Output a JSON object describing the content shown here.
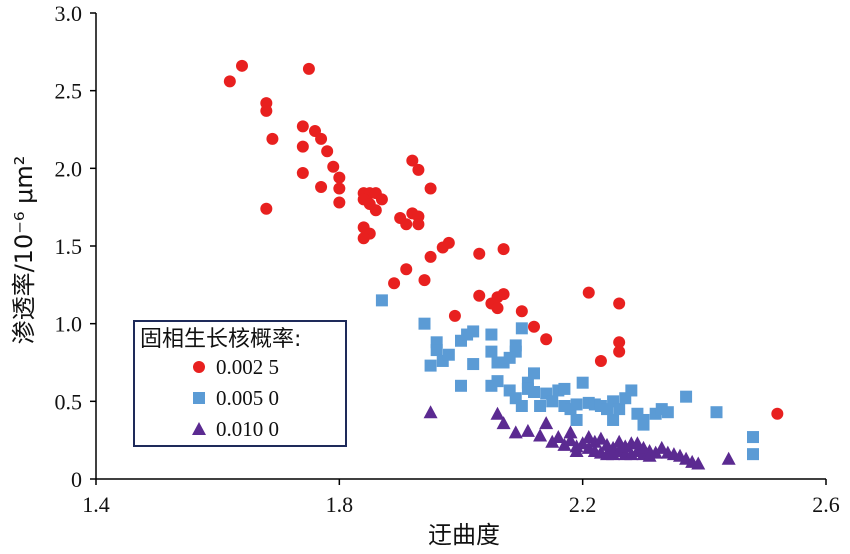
{
  "chart_data": {
    "type": "scatter",
    "xlabel": "迂曲度",
    "ylabel": "渗透率/10⁻⁶ μm²",
    "xlim": [
      1.4,
      2.6
    ],
    "ylim": [
      0,
      3.0
    ],
    "xticks": [
      "1.4",
      "1.8",
      "2.2",
      "2.6"
    ],
    "yticks": [
      "0",
      "0.5",
      "1.0",
      "1.5",
      "2.0",
      "2.5",
      "3.0"
    ],
    "grid": false,
    "legend": {
      "title": "固相生长核概率:",
      "placement": "bottom-left"
    },
    "series": [
      {
        "name": "0.002 5",
        "marker": "circle",
        "color": "#e8201f",
        "points": [
          [
            1.62,
            2.56
          ],
          [
            1.64,
            2.66
          ],
          [
            1.68,
            2.42
          ],
          [
            1.68,
            2.37
          ],
          [
            1.69,
            2.19
          ],
          [
            1.68,
            1.74
          ],
          [
            1.75,
            2.64
          ],
          [
            1.74,
            2.27
          ],
          [
            1.76,
            2.24
          ],
          [
            1.77,
            2.19
          ],
          [
            1.74,
            2.14
          ],
          [
            1.78,
            2.11
          ],
          [
            1.79,
            2.01
          ],
          [
            1.74,
            1.97
          ],
          [
            1.8,
            1.94
          ],
          [
            1.77,
            1.88
          ],
          [
            1.8,
            1.87
          ],
          [
            1.8,
            1.78
          ],
          [
            1.84,
            1.84
          ],
          [
            1.85,
            1.84
          ],
          [
            1.86,
            1.84
          ],
          [
            1.84,
            1.8
          ],
          [
            1.85,
            1.77
          ],
          [
            1.86,
            1.73
          ],
          [
            1.84,
            1.62
          ],
          [
            1.85,
            1.58
          ],
          [
            1.84,
            1.55
          ],
          [
            1.87,
            1.8
          ],
          [
            1.92,
            2.05
          ],
          [
            1.93,
            1.99
          ],
          [
            1.95,
            1.87
          ],
          [
            1.92,
            1.71
          ],
          [
            1.93,
            1.69
          ],
          [
            1.9,
            1.68
          ],
          [
            1.93,
            1.64
          ],
          [
            1.91,
            1.64
          ],
          [
            1.97,
            1.49
          ],
          [
            1.98,
            1.52
          ],
          [
            1.95,
            1.43
          ],
          [
            1.91,
            1.35
          ],
          [
            1.89,
            1.26
          ],
          [
            1.94,
            1.28
          ],
          [
            2.03,
            1.45
          ],
          [
            2.07,
            1.48
          ],
          [
            2.03,
            1.18
          ],
          [
            2.05,
            1.13
          ],
          [
            2.06,
            1.17
          ],
          [
            2.07,
            1.19
          ],
          [
            2.06,
            1.1
          ],
          [
            1.99,
            1.05
          ],
          [
            2.1,
            1.08
          ],
          [
            2.12,
            0.98
          ],
          [
            2.14,
            0.9
          ],
          [
            2.21,
            1.2
          ],
          [
            2.26,
            1.13
          ],
          [
            2.23,
            0.76
          ],
          [
            2.26,
            0.88
          ],
          [
            2.26,
            0.82
          ],
          [
            2.52,
            0.42
          ]
        ]
      },
      {
        "name": "0.005 0",
        "marker": "square",
        "color": "#5b9bd5",
        "points": [
          [
            1.87,
            1.15
          ],
          [
            1.94,
            1.0
          ],
          [
            1.96,
            0.88
          ],
          [
            1.96,
            0.83
          ],
          [
            1.95,
            0.73
          ],
          [
            1.97,
            0.76
          ],
          [
            1.98,
            0.8
          ],
          [
            2.0,
            0.89
          ],
          [
            2.01,
            0.93
          ],
          [
            2.02,
            0.95
          ],
          [
            2.0,
            0.6
          ],
          [
            2.02,
            0.74
          ],
          [
            2.05,
            0.93
          ],
          [
            2.05,
            0.82
          ],
          [
            2.06,
            0.75
          ],
          [
            2.07,
            0.75
          ],
          [
            2.09,
            0.86
          ],
          [
            2.09,
            0.82
          ],
          [
            2.1,
            0.97
          ],
          [
            2.08,
            0.78
          ],
          [
            2.06,
            0.63
          ],
          [
            2.05,
            0.6
          ],
          [
            2.08,
            0.57
          ],
          [
            2.09,
            0.52
          ],
          [
            2.1,
            0.47
          ],
          [
            2.11,
            0.62
          ],
          [
            2.11,
            0.58
          ],
          [
            2.12,
            0.56
          ],
          [
            2.12,
            0.68
          ],
          [
            2.13,
            0.47
          ],
          [
            2.14,
            0.55
          ],
          [
            2.15,
            0.5
          ],
          [
            2.16,
            0.57
          ],
          [
            2.17,
            0.58
          ],
          [
            2.17,
            0.47
          ],
          [
            2.18,
            0.45
          ],
          [
            2.19,
            0.48
          ],
          [
            2.19,
            0.38
          ],
          [
            2.2,
            0.62
          ],
          [
            2.21,
            0.49
          ],
          [
            2.22,
            0.48
          ],
          [
            2.23,
            0.47
          ],
          [
            2.24,
            0.45
          ],
          [
            2.25,
            0.5
          ],
          [
            2.25,
            0.38
          ],
          [
            2.26,
            0.45
          ],
          [
            2.27,
            0.52
          ],
          [
            2.28,
            0.57
          ],
          [
            2.29,
            0.42
          ],
          [
            2.3,
            0.38
          ],
          [
            2.3,
            0.35
          ],
          [
            2.32,
            0.42
          ],
          [
            2.33,
            0.45
          ],
          [
            2.34,
            0.43
          ],
          [
            2.37,
            0.53
          ],
          [
            2.42,
            0.43
          ],
          [
            2.48,
            0.27
          ],
          [
            2.48,
            0.16
          ]
        ]
      },
      {
        "name": "0.010 0",
        "marker": "triangle",
        "color": "#5b2a91",
        "points": [
          [
            1.95,
            0.43
          ],
          [
            2.06,
            0.42
          ],
          [
            2.07,
            0.36
          ],
          [
            2.09,
            0.3
          ],
          [
            2.11,
            0.31
          ],
          [
            2.13,
            0.28
          ],
          [
            2.14,
            0.36
          ],
          [
            2.15,
            0.24
          ],
          [
            2.16,
            0.27
          ],
          [
            2.17,
            0.22
          ],
          [
            2.18,
            0.3
          ],
          [
            2.18,
            0.25
          ],
          [
            2.19,
            0.21
          ],
          [
            2.19,
            0.18
          ],
          [
            2.2,
            0.23
          ],
          [
            2.21,
            0.27
          ],
          [
            2.21,
            0.2
          ],
          [
            2.22,
            0.24
          ],
          [
            2.22,
            0.18
          ],
          [
            2.23,
            0.26
          ],
          [
            2.23,
            0.17
          ],
          [
            2.24,
            0.22
          ],
          [
            2.24,
            0.16
          ],
          [
            2.25,
            0.2
          ],
          [
            2.25,
            0.16
          ],
          [
            2.26,
            0.24
          ],
          [
            2.26,
            0.18
          ],
          [
            2.27,
            0.16
          ],
          [
            2.27,
            0.21
          ],
          [
            2.28,
            0.16
          ],
          [
            2.28,
            0.23
          ],
          [
            2.29,
            0.18
          ],
          [
            2.29,
            0.23
          ],
          [
            2.3,
            0.16
          ],
          [
            2.3,
            0.2
          ],
          [
            2.31,
            0.18
          ],
          [
            2.31,
            0.15
          ],
          [
            2.32,
            0.17
          ],
          [
            2.33,
            0.2
          ],
          [
            2.34,
            0.17
          ],
          [
            2.35,
            0.16
          ],
          [
            2.36,
            0.15
          ],
          [
            2.37,
            0.13
          ],
          [
            2.38,
            0.11
          ],
          [
            2.39,
            0.1
          ],
          [
            2.44,
            0.13
          ]
        ]
      }
    ]
  }
}
